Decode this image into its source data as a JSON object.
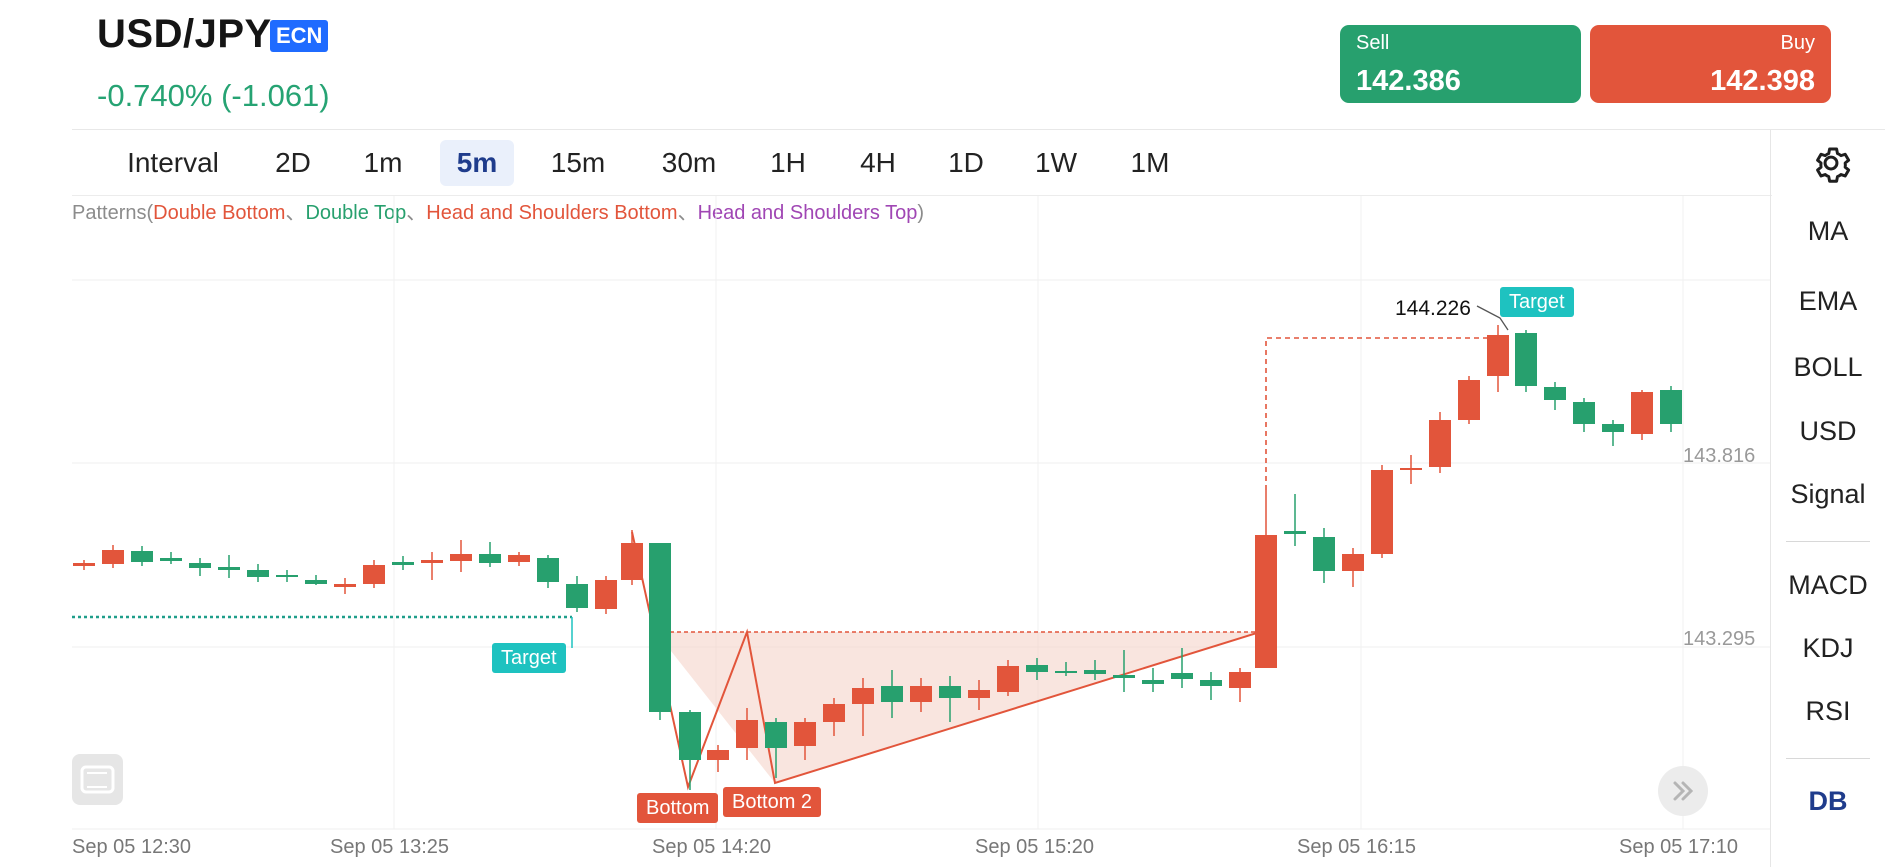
{
  "header": {
    "symbol": "USD/JPY",
    "badge": "ECN",
    "change": "-0.740% (-1.061)",
    "sell": {
      "label": "Sell",
      "price": "142.386"
    },
    "buy": {
      "label": "Buy",
      "price": "142.398"
    }
  },
  "toolbar": {
    "interval_label": "Interval",
    "intervals": [
      "2D",
      "1m",
      "5m",
      "15m",
      "30m",
      "1H",
      "4H",
      "1D",
      "1W",
      "1M"
    ],
    "active": "5m"
  },
  "sidebar": {
    "items": [
      "MA",
      "EMA",
      "BOLL",
      "USD",
      "Signal",
      "MACD",
      "KDJ",
      "RSI",
      "DB"
    ]
  },
  "patterns": {
    "prefix": "Patterns",
    "items": [
      "Double Bottom",
      "Double Top",
      "Head and Shoulders Bottom",
      "Head and Shoulders Top"
    ],
    "separator": "、"
  },
  "chart": {
    "price_labels": [
      "143.816",
      "143.295"
    ],
    "target_price": "144.226",
    "target_tag": "Target",
    "target_tag_left": "Target",
    "bottom_tag": "Bottom",
    "bottom2_tag": "Bottom 2",
    "time_labels": [
      "Sep 05 12:30",
      "Sep 05 13:25",
      "Sep 05 14:20",
      "Sep 05 15:20",
      "Sep 05 16:15",
      "Sep 05 17:10"
    ]
  },
  "colors": {
    "up": "#27a06e",
    "down": "#e2553b",
    "teal": "#1ec2c0",
    "accent": "#1f3c8c"
  }
}
